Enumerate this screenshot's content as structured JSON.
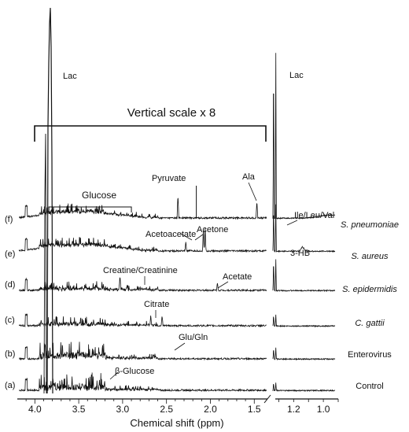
{
  "chart_data": {
    "type": "line",
    "xlabel": "Chemical shift (ppm)",
    "x_reversed": true,
    "axis_break": [
      1.35,
      1.28
    ],
    "left_panel_x": [
      4.2,
      0.9
    ],
    "right_panel_x": [
      1.35,
      0.9
    ],
    "tick_labels": [
      "4.0",
      "3.5",
      "3.0",
      "2.5",
      "2.0",
      "1.5",
      "1.2",
      "1.0"
    ],
    "scale_note": "Vertical scale x 8",
    "series": [
      {
        "label": "(a)",
        "name": "Control",
        "styled_italic": false
      },
      {
        "label": "(b)",
        "name": "Enterovirus",
        "styled_italic": false
      },
      {
        "label": "(c)",
        "name": "C. gattii",
        "styled_italic": true
      },
      {
        "label": "(d)",
        "name": "S. epidermidis",
        "styled_italic": true
      },
      {
        "label": "(e)",
        "name": "S. aureus",
        "styled_italic": true
      },
      {
        "label": "(f)",
        "name": "S. pneumoniae",
        "styled_italic": true
      }
    ],
    "peak_annotations": [
      {
        "text": "Lac",
        "ppm": 3.93,
        "panel": "left"
      },
      {
        "text": "Lac",
        "ppm": 1.21,
        "panel": "right"
      },
      {
        "text": "Glucose",
        "ppm_range": [
          3.84,
          2.9
        ]
      },
      {
        "text": "Pyruvate",
        "ppm": 2.16
      },
      {
        "text": "Ala",
        "ppm": 1.47
      },
      {
        "text": "Acetoacetate",
        "ppm": 2.08
      },
      {
        "text": "Acetone",
        "ppm": 2.06
      },
      {
        "text": "Ile/Leu/Val",
        "ppm": 1.0
      },
      {
        "text": "3-HB",
        "ppm": 1.14
      },
      {
        "text": "Creatine/Creatinine",
        "ppm": 3.03
      },
      {
        "text": "Acetate",
        "ppm": 1.92
      },
      {
        "text": "Citrate",
        "ppm": 2.55
      },
      {
        "text": "Glu/Gln",
        "ppm": 2.05
      },
      {
        "text": "β-Glucose",
        "ppm": 3.25
      }
    ]
  }
}
